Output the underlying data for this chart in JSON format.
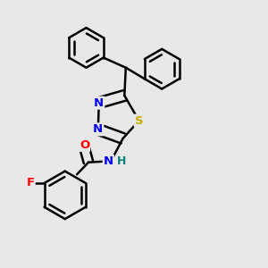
{
  "background_color": "#e8e8e8",
  "bond_color": "#000000",
  "bond_width": 1.8,
  "atom_colors": {
    "N": "#0000ff",
    "S": "#ccaa00",
    "O": "#ff0000",
    "F": "#ff0000",
    "H": "#008080",
    "C": "#000000"
  },
  "font_size": 9.5,
  "fig_size": [
    3.0,
    3.0
  ],
  "dpi": 100
}
